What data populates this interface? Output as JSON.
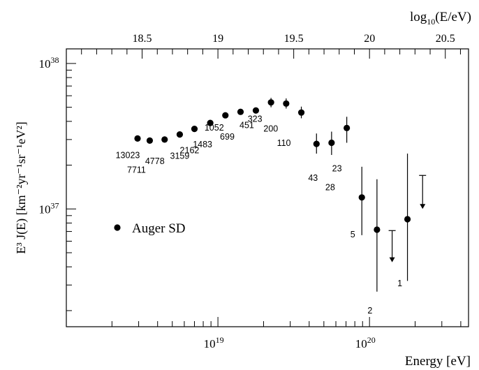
{
  "chart_data": {
    "type": "scatter",
    "title": "",
    "xlabel": "Energy [eV]",
    "ylabel": "E³ J(E) [km⁻²yr⁻¹sr⁻¹eV²]",
    "top_axis_label": "log10(E/eV)",
    "x_scale": "log",
    "y_scale": "log",
    "xlim": [
      1e+18,
      4.5e+20
    ],
    "ylim": [
      1.55e+36,
      1.26e+38
    ],
    "x_ticks": [
      {
        "value": 1e+19,
        "label": "10^19"
      },
      {
        "value": 1e+20,
        "label": "10^20"
      }
    ],
    "y_ticks": [
      {
        "value": 1e+37,
        "label": "10^37"
      },
      {
        "value": 1e+38,
        "label": "10^38"
      }
    ],
    "top_ticks": [
      "18.5",
      "19",
      "19.5",
      "20",
      "20.5"
    ],
    "legend": {
      "label": "Auger SD",
      "position": "left-middle"
    },
    "series": [
      {
        "name": "Auger SD",
        "points": [
          {
            "x": 2.95e+18,
            "y": 3.05e+37,
            "events": "13023"
          },
          {
            "x": 3.55e+18,
            "y": 2.95e+37,
            "events": "7711"
          },
          {
            "x": 4.45e+18,
            "y": 3e+37,
            "events": "4778"
          },
          {
            "x": 5.6e+18,
            "y": 3.25e+37,
            "events": "3159"
          },
          {
            "x": 7e+18,
            "y": 3.55e+37,
            "events": "2162"
          },
          {
            "x": 8.9e+18,
            "y": 3.9e+37,
            "events": "1483"
          },
          {
            "x": 1.12e+19,
            "y": 4.4e+37,
            "events": "1052"
          },
          {
            "x": 1.41e+19,
            "y": 4.65e+37,
            "events": "699"
          },
          {
            "x": 1.78e+19,
            "y": 4.75e+37,
            "events": "451"
          },
          {
            "x": 2.24e+19,
            "y": 5.4e+37,
            "events": "323",
            "yerr": [
              5e+37,
              5.8e+37
            ]
          },
          {
            "x": 2.82e+19,
            "y": 5.3e+37,
            "events": "200",
            "yerr": [
              4.9e+37,
              5.75e+37
            ]
          },
          {
            "x": 3.55e+19,
            "y": 4.6e+37,
            "events": "110",
            "yerr": [
              4.2e+37,
              5.05e+37
            ]
          },
          {
            "x": 4.47e+19,
            "y": 2.8e+37,
            "events": "43",
            "yerr": [
              2.4e+37,
              3.3e+37
            ]
          },
          {
            "x": 5.62e+19,
            "y": 2.85e+37,
            "events": "28",
            "yerr": [
              2.35e+37,
              3.4e+37
            ]
          },
          {
            "x": 7.08e+19,
            "y": 3.6e+37,
            "events": "23",
            "yerr": [
              2.85e+37,
              4.3e+37
            ]
          },
          {
            "x": 8.9e+19,
            "y": 1.2e+37,
            "events": "5",
            "yerr": [
              6.6e+36,
              1.95e+37
            ]
          },
          {
            "x": 1.12e+20,
            "y": 7.2e+36,
            "events": "2",
            "yerr": [
              2.7e+36,
              1.6e+37
            ]
          },
          {
            "x": 1.41e+20,
            "upper_limit": 7.1e+36,
            "arrow_to": 4.3e+36
          },
          {
            "x": 1.78e+20,
            "y": 8.5e+36,
            "events": "1",
            "yerr": [
              3.2e+36,
              2.4e+37
            ]
          },
          {
            "x": 2.24e+20,
            "upper_limit": 1.7e+37,
            "arrow_to": 1e+37
          }
        ]
      }
    ]
  }
}
